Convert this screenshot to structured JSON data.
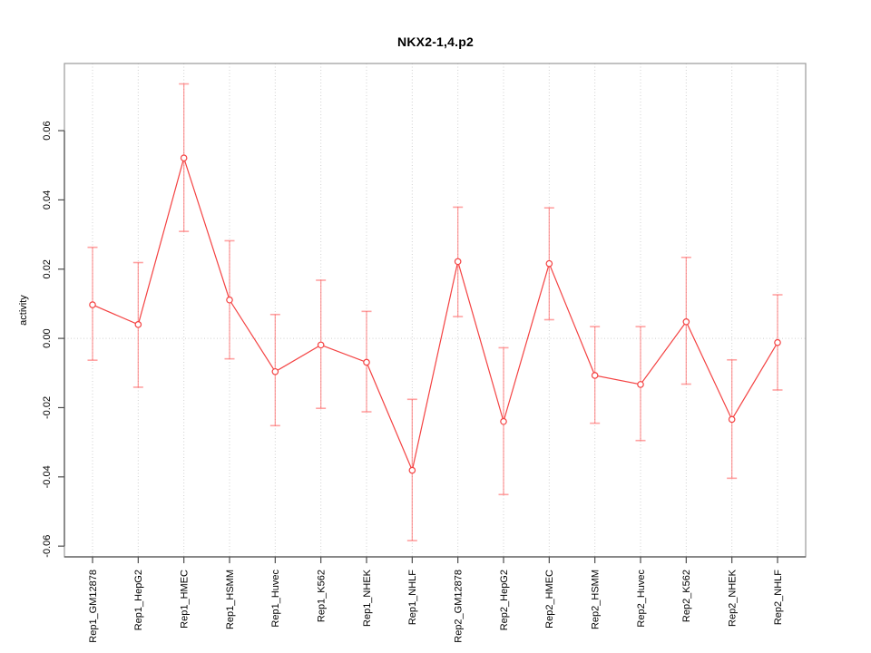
{
  "header": {
    "title": "NKX2-1,4.p2"
  },
  "chart_data": {
    "type": "line",
    "title": "NKX2-1,4.p2",
    "xlabel": "",
    "ylabel": "activity",
    "categories": [
      "Rep1_GM12878",
      "Rep1_HepG2",
      "Rep1_HMEC",
      "Rep1_HSMM",
      "Rep1_Huvec",
      "Rep1_K562",
      "Rep1_NHEK",
      "Rep1_NHLF",
      "Rep2_GM12878",
      "Rep2_HepG2",
      "Rep2_HMEC",
      "Rep2_HSMM",
      "Rep2_Huvec",
      "Rep2_K562",
      "Rep2_NHEK",
      "Rep2_NHLF"
    ],
    "series": [
      {
        "name": "activity",
        "marker": "open-circle",
        "values": [
          0.0097,
          0.004,
          0.0521,
          0.0111,
          -0.0096,
          -0.0019,
          -0.0069,
          -0.0381,
          0.0222,
          -0.024,
          0.0216,
          -0.0107,
          -0.0133,
          0.0048,
          -0.0234,
          -0.0012
        ],
        "error_high": [
          0.0263,
          0.0219,
          0.0735,
          0.0282,
          0.0069,
          0.0168,
          0.0078,
          -0.0176,
          0.0379,
          -0.0027,
          0.0377,
          0.0034,
          0.0034,
          0.0234,
          -0.0062,
          0.0126
        ],
        "error_low": [
          -0.0063,
          -0.0141,
          0.0309,
          -0.0059,
          -0.0252,
          -0.0202,
          -0.0212,
          -0.0584,
          0.0063,
          -0.0451,
          0.0054,
          -0.0245,
          -0.0295,
          -0.0132,
          -0.0404,
          -0.0149
        ]
      }
    ],
    "ylim": [
      -0.0631,
      0.0794
    ],
    "yticks": [
      -0.06,
      -0.04,
      -0.02,
      0.0,
      0.02,
      0.04,
      0.06
    ],
    "grid": {
      "vertical_per_category": true,
      "zero_line": true,
      "style": "dotted"
    },
    "legend": null,
    "colors": {
      "series_line": "#f44242",
      "point_stroke": "#f44242",
      "point_fill": "#ffffff",
      "error_bar": "rgba(255,70,70,0.5)",
      "grid_line": "#cfcfcf",
      "box_border": "#9a9a9a",
      "axis_line": "#4d4d4d",
      "tick_text": "#000000"
    }
  }
}
